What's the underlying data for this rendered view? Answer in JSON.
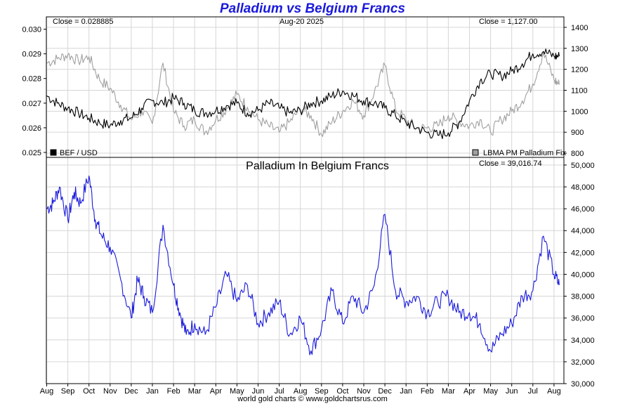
{
  "title": "Palladium vs Belgium Francs",
  "footer": "world gold charts © www.goldchartsrus.com",
  "colors": {
    "title": "#1a1adb",
    "bef_line": "#000000",
    "palladium_fix_line": "#a0a0a0",
    "palladium_in_bef_line": "#1a1adb",
    "grid": "#d6d6d6",
    "frame": "#000000"
  },
  "chart_data": [
    {
      "type": "line",
      "panel": "top",
      "annotations": {
        "close_left": "Close = 0.028885",
        "date": "Aug-20  2025",
        "close_right": "Close = 1,127.00"
      },
      "legend": [
        {
          "name": "BEF / USD",
          "placement": "bottom-left"
        },
        {
          "name": "LBMA PM Palladium Fix",
          "placement": "bottom-right"
        }
      ],
      "x_ticks": [
        "Aug",
        "Sep",
        "Oct",
        "Nov",
        "Dec",
        "Jan",
        "Feb",
        "Mar",
        "Apr",
        "May",
        "Jun",
        "Jul",
        "Aug",
        "Sep",
        "Oct",
        "Nov",
        "Dec",
        "Jan",
        "Feb",
        "Mar",
        "Apr",
        "May",
        "Jun",
        "Jul",
        "Aug"
      ],
      "y_left": {
        "ylim": [
          0.0248,
          0.0305
        ],
        "ticks": [
          "0.025",
          "0.026",
          "0.027",
          "0.028",
          "0.029",
          "0.030"
        ],
        "tick_values": [
          0.025,
          0.026,
          0.027,
          0.028,
          0.029,
          0.03
        ]
      },
      "y_right": {
        "ylim": [
          780,
          1450
        ],
        "ticks": [
          "800",
          "900",
          "1000",
          "1100",
          "1200",
          "1300",
          "1400"
        ],
        "tick_values": [
          800,
          900,
          1000,
          1100,
          1200,
          1300,
          1400
        ]
      },
      "grid": true,
      "series": [
        {
          "name": "BEF / USD",
          "axis": "left",
          "x": [
            0,
            0.5,
            1,
            1.5,
            2,
            2.5,
            3,
            3.5,
            4,
            4.5,
            5,
            5.5,
            6,
            6.5,
            7,
            7.5,
            8,
            8.5,
            9,
            9.5,
            10,
            10.5,
            11,
            11.5,
            12,
            12.5,
            13,
            13.5,
            14,
            14.5,
            15,
            15.5,
            16,
            16.5,
            17,
            17.5,
            18,
            18.5,
            19,
            19.5,
            20,
            20.5,
            21,
            21.5,
            22,
            22.5,
            23,
            23.5,
            24,
            24.25
          ],
          "values": [
            0.0273,
            0.027,
            0.0268,
            0.0266,
            0.0264,
            0.0262,
            0.0261,
            0.0263,
            0.0264,
            0.0268,
            0.0271,
            0.027,
            0.0272,
            0.027,
            0.0267,
            0.0266,
            0.0267,
            0.0269,
            0.027,
            0.0266,
            0.0267,
            0.027,
            0.0268,
            0.0266,
            0.0267,
            0.027,
            0.0271,
            0.0273,
            0.0275,
            0.0273,
            0.0271,
            0.027,
            0.0268,
            0.0265,
            0.0262,
            0.026,
            0.0258,
            0.0257,
            0.0258,
            0.0262,
            0.0271,
            0.0279,
            0.0282,
            0.0281,
            0.0283,
            0.0286,
            0.029,
            0.0291,
            0.0289,
            0.0289
          ]
        },
        {
          "name": "LBMA PM Palladium Fix",
          "axis": "right",
          "x": [
            0,
            0.5,
            1,
            1.5,
            2,
            2.5,
            3,
            3.5,
            4,
            4.5,
            5,
            5.5,
            6,
            6.5,
            7,
            7.5,
            8,
            8.5,
            9,
            9.5,
            10,
            10.5,
            11,
            11.5,
            12,
            12.5,
            13,
            13.5,
            14,
            14.5,
            15,
            15.5,
            16,
            16.5,
            17,
            17.5,
            18,
            18.5,
            19,
            19.5,
            20,
            20.5,
            21,
            21.5,
            22,
            22.5,
            23,
            23.5,
            24,
            24.25
          ],
          "values": [
            1230,
            1250,
            1270,
            1240,
            1260,
            1150,
            1110,
            1030,
            960,
            1000,
            940,
            1230,
            1000,
            930,
            960,
            900,
            960,
            1010,
            1080,
            1020,
            960,
            930,
            900,
            950,
            1010,
            980,
            890,
            950,
            1000,
            1050,
            980,
            1090,
            1220,
            1010,
            960,
            920,
            920,
            930,
            980,
            950,
            930,
            960,
            900,
            960,
            1000,
            1050,
            1130,
            1280,
            1150,
            1127
          ]
        }
      ]
    },
    {
      "type": "line",
      "panel": "bottom",
      "title": "Palladium In Belgium Francs",
      "annotations": {
        "close_right": "Close = 39,016.74"
      },
      "x_ticks": [
        "Aug",
        "Sep",
        "Oct",
        "Nov",
        "Dec",
        "Jan",
        "Feb",
        "Mar",
        "Apr",
        "May",
        "Jun",
        "Jul",
        "Aug",
        "Sep",
        "Oct",
        "Nov",
        "Dec",
        "Jan",
        "Feb",
        "Mar",
        "Apr",
        "May",
        "Jun",
        "Jul",
        "Aug"
      ],
      "y_right": {
        "ylim": [
          30000,
          50700
        ],
        "ticks": [
          "30,000",
          "32,000",
          "34,000",
          "36,000",
          "38,000",
          "40,000",
          "42,000",
          "44,000",
          "46,000",
          "48,000",
          "50,000"
        ],
        "tick_values": [
          30000,
          32000,
          34000,
          36000,
          38000,
          40000,
          42000,
          44000,
          46000,
          48000,
          50000
        ]
      },
      "grid": true,
      "series": [
        {
          "name": "Palladium In Belgium Francs",
          "axis": "right",
          "x": [
            0,
            0.3,
            0.6,
            1,
            1.3,
            1.6,
            2,
            2.3,
            2.6,
            3,
            3.5,
            4,
            4.3,
            4.6,
            5,
            5.5,
            6,
            6.3,
            6.6,
            7,
            7.5,
            8,
            8.5,
            9,
            9.5,
            10,
            10.5,
            11,
            11.5,
            12,
            12.5,
            13,
            13.5,
            14,
            14.5,
            15,
            15.5,
            16,
            16.5,
            17,
            17.5,
            18,
            18.5,
            19,
            19.5,
            20,
            20.5,
            21,
            21.5,
            22,
            22.5,
            23,
            23.5,
            24,
            24.25
          ],
          "values": [
            46000,
            46500,
            48000,
            45000,
            47500,
            46500,
            49000,
            45000,
            43500,
            42500,
            39500,
            36000,
            39500,
            38000,
            36500,
            44500,
            39000,
            36500,
            34500,
            35500,
            34500,
            37000,
            40000,
            37500,
            39000,
            35500,
            36500,
            37500,
            34500,
            36000,
            33000,
            35000,
            38500,
            35500,
            38000,
            36500,
            39000,
            45500,
            38500,
            37500,
            38000,
            36500,
            37500,
            38000,
            36500,
            36500,
            35500,
            33000,
            34500,
            35500,
            38000,
            38500,
            43500,
            40000,
            39017
          ]
        }
      ]
    }
  ]
}
